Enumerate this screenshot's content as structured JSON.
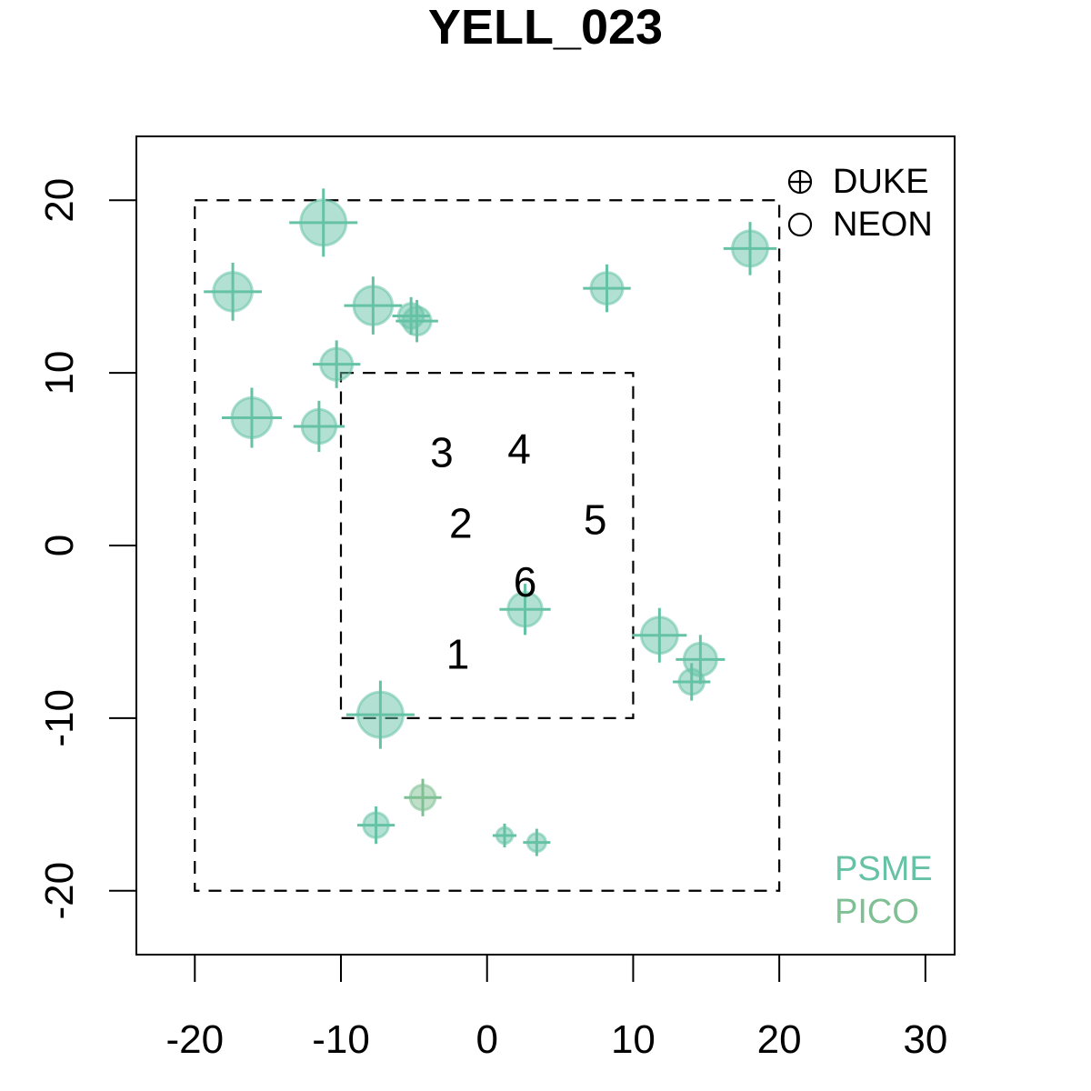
{
  "chart_data": {
    "type": "scatter",
    "title": "YELL_023",
    "xlabel": "",
    "ylabel": "",
    "xlim": [
      -24,
      32
    ],
    "ylim": [
      -23.7,
      23.7
    ],
    "x_ticks": [
      -20,
      -10,
      0,
      10,
      20,
      30
    ],
    "x_tick_labels": [
      "-20",
      "-10",
      "0",
      "10",
      "20",
      "30"
    ],
    "y_ticks": [
      -20,
      -10,
      0,
      10,
      20
    ],
    "y_tick_labels": [
      "-20",
      "-10",
      "0",
      "10",
      "20"
    ],
    "grid": false,
    "boxes": [
      {
        "xmin": -20,
        "xmax": 20,
        "ymin": -20,
        "ymax": 20,
        "style": "dashed"
      },
      {
        "xmin": -10,
        "xmax": 10,
        "ymin": -10,
        "ymax": 10,
        "style": "dashed"
      }
    ],
    "annotations": [
      {
        "text": "1",
        "x": -2,
        "y": -6.5
      },
      {
        "text": "2",
        "x": -1.8,
        "y": 1.1
      },
      {
        "text": "3",
        "x": -3.1,
        "y": 5.2
      },
      {
        "text": "4",
        "x": 2.2,
        "y": 5.4
      },
      {
        "text": "5",
        "x": 7.4,
        "y": 1.3
      },
      {
        "text": "6",
        "x": 2.6,
        "y": -2.3
      }
    ],
    "shape_legend": {
      "position": "top-right",
      "entries": [
        {
          "label": "DUKE",
          "symbol": "circle-plus"
        },
        {
          "label": "NEON",
          "symbol": "circle"
        }
      ]
    },
    "species_legend": {
      "position": "bottom-right",
      "entries": [
        {
          "label": "PSME",
          "color": "#66c2a5"
        },
        {
          "label": "PICO",
          "color": "#7fbf94"
        }
      ]
    },
    "series": [
      {
        "color": "#66c2a5",
        "points": [
          {
            "x": -11.2,
            "y": 18.7,
            "size": 1.0
          },
          {
            "x": 18.0,
            "y": 17.2,
            "size": 0.78
          },
          {
            "x": -17.4,
            "y": 14.7,
            "size": 0.85
          },
          {
            "x": -7.8,
            "y": 13.9,
            "size": 0.85
          },
          {
            "x": -5.2,
            "y": 13.3,
            "size": 0.55
          },
          {
            "x": -4.8,
            "y": 13.0,
            "size": 0.62
          },
          {
            "x": 8.2,
            "y": 14.9,
            "size": 0.7
          },
          {
            "x": -10.3,
            "y": 10.5,
            "size": 0.7
          },
          {
            "x": -16.1,
            "y": 7.4,
            "size": 0.88
          },
          {
            "x": -11.5,
            "y": 6.9,
            "size": 0.75
          },
          {
            "x": 2.6,
            "y": -3.7,
            "size": 0.75
          },
          {
            "x": 11.8,
            "y": -5.2,
            "size": 0.8
          },
          {
            "x": 14.6,
            "y": -6.6,
            "size": 0.72
          },
          {
            "x": 14.0,
            "y": -7.9,
            "size": 0.55
          },
          {
            "x": -7.3,
            "y": -9.8,
            "size": 1.0
          },
          {
            "x": -7.6,
            "y": -16.2,
            "size": 0.55
          },
          {
            "x": 1.2,
            "y": -16.8,
            "size": 0.35
          },
          {
            "x": 3.4,
            "y": -17.2,
            "size": 0.4
          }
        ]
      },
      {
        "color": "#7fbf94",
        "points": [
          {
            "x": -4.4,
            "y": -14.6,
            "size": 0.55
          }
        ]
      }
    ]
  }
}
